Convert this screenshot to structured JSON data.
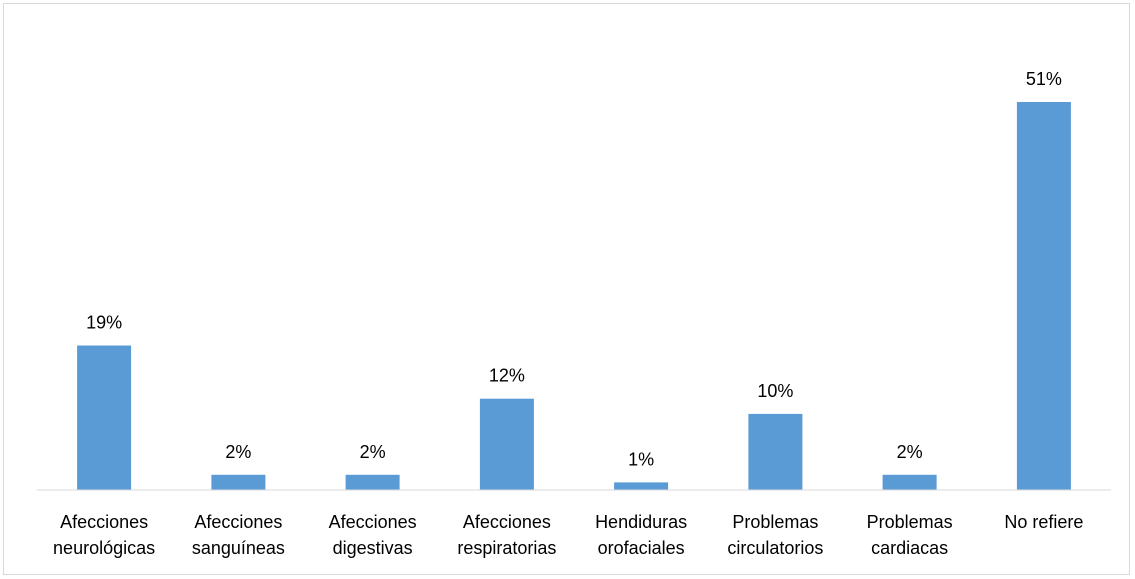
{
  "chart_data": {
    "type": "bar",
    "title": "",
    "xlabel": "",
    "ylabel": "",
    "categories": [
      [
        "Afecciones",
        "neurológicas"
      ],
      [
        "Afecciones",
        "sanguíneas"
      ],
      [
        "Afecciones",
        "digestivas"
      ],
      [
        "Afecciones",
        "respiratorias"
      ],
      [
        "Hendiduras",
        "orofaciales"
      ],
      [
        "Problemas",
        "circulatorios"
      ],
      [
        "Problemas",
        "cardiacas"
      ],
      [
        "No refiere"
      ]
    ],
    "values": [
      19,
      2,
      2,
      12,
      1,
      10,
      2,
      51
    ],
    "data_labels": [
      "19%",
      "2%",
      "2%",
      "12%",
      "1%",
      "10%",
      "2%",
      "51%"
    ],
    "unit": "%",
    "ylim": [
      0,
      51
    ],
    "grid": false,
    "legend": "none",
    "bar_color": "#5B9BD5",
    "axis_color": "#d9d9d9"
  }
}
